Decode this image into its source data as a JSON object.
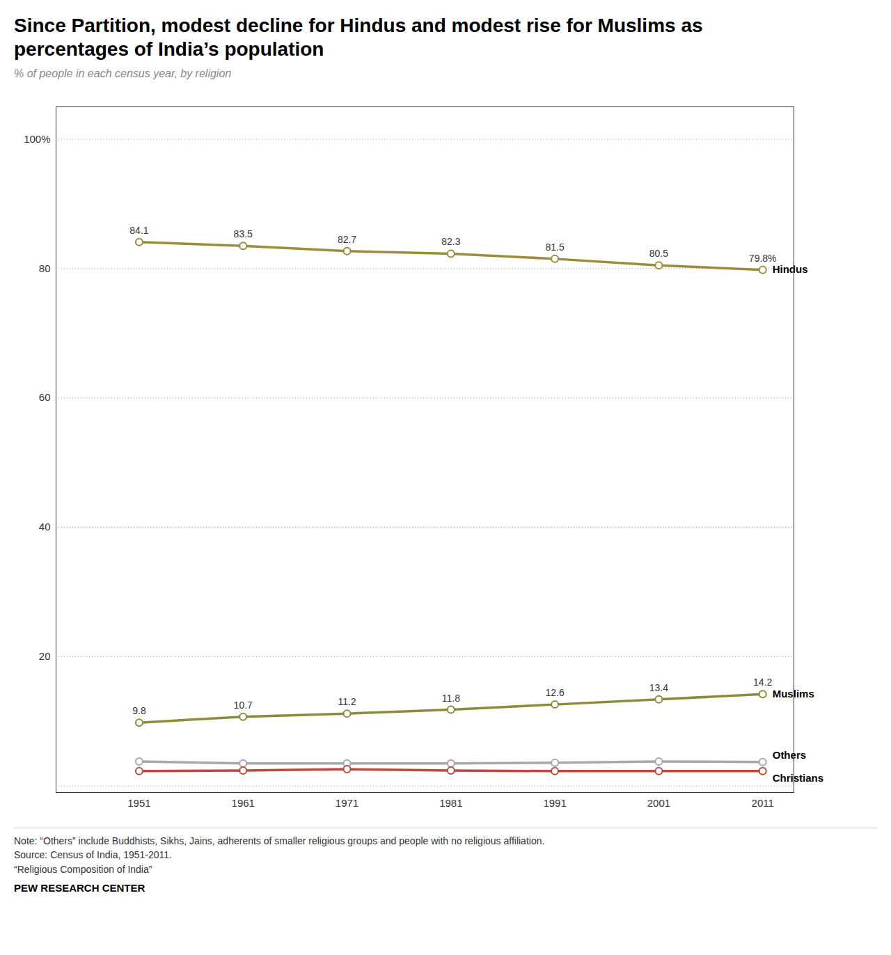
{
  "chart_data": {
    "type": "line",
    "title": "Since Partition, modest decline for Hindus and modest rise for Muslims as percentages of India’s population",
    "subtitle": "% of people in each census year, by religion",
    "notes": [
      "Note: “Others” include Buddhists, Sikhs, Jains, adherents of smaller religious groups and people with no religious affiliation.",
      "Source: Census of India, 1951-2011.",
      "“Religious Composition of India”"
    ],
    "source": "PEW RESEARCH CENTER",
    "x": [
      1951,
      1961,
      1971,
      1981,
      1991,
      2001,
      2011
    ],
    "series": [
      {
        "name": "Others",
        "color": "#A8A8A8",
        "marker": "circle",
        "values": [
          3.8,
          3.5,
          3.5,
          3.5,
          3.6,
          3.8,
          3.7
        ]
      },
      {
        "name": "Christians",
        "color": "#B84B3A",
        "marker": "circle",
        "values": [
          2.3,
          2.4,
          2.6,
          2.4,
          2.3,
          2.3,
          2.3
        ]
      },
      {
        "name": "Muslims",
        "color": "#8B8B3A",
        "marker": "circle",
        "data_labels": true,
        "values": [
          9.8,
          10.7,
          11.2,
          11.8,
          12.6,
          13.4,
          14.2
        ]
      },
      {
        "name": "Hindus",
        "color": "#9B8B3A",
        "marker": "circle",
        "data_labels": true,
        "values": [
          84.1,
          83.5,
          82.7,
          82.3,
          81.5,
          80.5,
          79.8
        ],
        "value_labels": [
          "84.1",
          "83.5",
          "82.7",
          "82.3",
          "81.5",
          "80.5",
          "79.8%"
        ]
      }
    ],
    "xlim": [
      1943,
      2014
    ],
    "xticks": [
      1951,
      1961,
      1971,
      1981,
      1991,
      2001,
      2011
    ],
    "ylim": [
      -1,
      105
    ],
    "yticks": [
      {
        "value": 0,
        "label": null
      },
      20,
      40,
      60,
      80,
      {
        "value": 100,
        "label": "100%"
      }
    ],
    "grid": true
  }
}
